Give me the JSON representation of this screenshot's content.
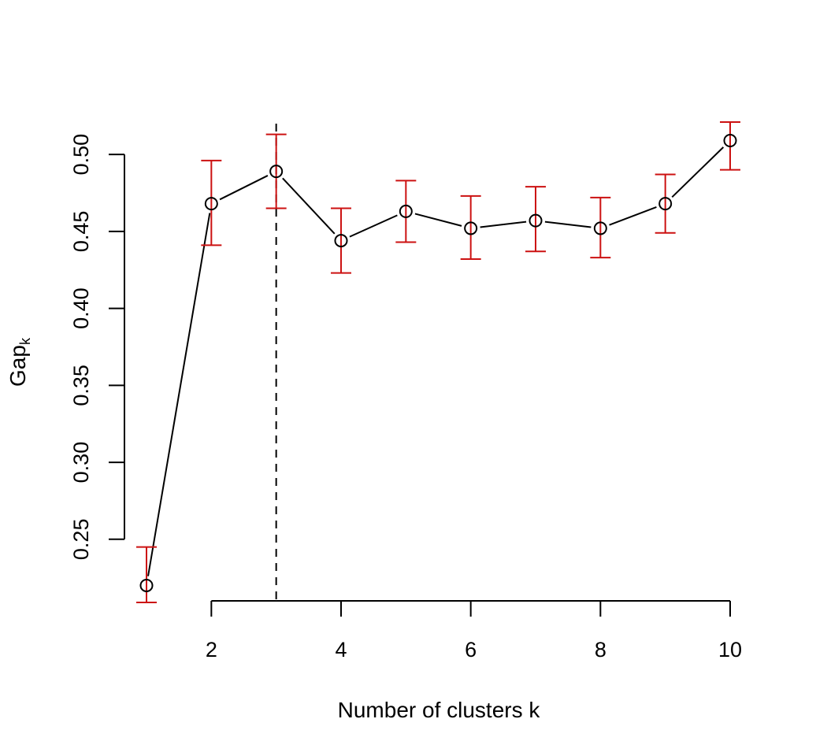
{
  "chart_data": {
    "type": "scatter",
    "title": "",
    "xlabel": "Number of clusters k",
    "ylabel": {
      "main": "Gap",
      "subscript": "k"
    },
    "xlim": [
      1,
      10
    ],
    "ylim": [
      0.21,
      0.52
    ],
    "x_ticks": [
      2,
      4,
      6,
      8,
      10
    ],
    "x_tick_labels": [
      "2",
      "4",
      "6",
      "8",
      "10"
    ],
    "y_ticks": [
      0.25,
      0.3,
      0.35,
      0.4,
      0.45,
      0.5
    ],
    "y_tick_labels": [
      "0.25",
      "0.30",
      "0.35",
      "0.40",
      "0.45",
      "0.50"
    ],
    "grid": false,
    "legend": "none",
    "series": [
      {
        "x": [
          1,
          2,
          3,
          4,
          5,
          6,
          7,
          8,
          9,
          10
        ],
        "y": [
          0.22,
          0.468,
          0.489,
          0.444,
          0.463,
          0.452,
          0.457,
          0.452,
          0.468,
          0.509
        ],
        "error_low": [
          0.209,
          0.441,
          0.465,
          0.423,
          0.443,
          0.432,
          0.437,
          0.433,
          0.449,
          0.49
        ],
        "error_high": [
          0.245,
          0.496,
          0.513,
          0.465,
          0.483,
          0.473,
          0.479,
          0.472,
          0.487,
          0.521
        ]
      }
    ],
    "vertical_reference_line": {
      "x": 3,
      "style": "dashed"
    },
    "colors": {
      "points": "#000000",
      "line": "#000000",
      "error_bars": "#CC1111",
      "reference_line": "#000000"
    }
  }
}
